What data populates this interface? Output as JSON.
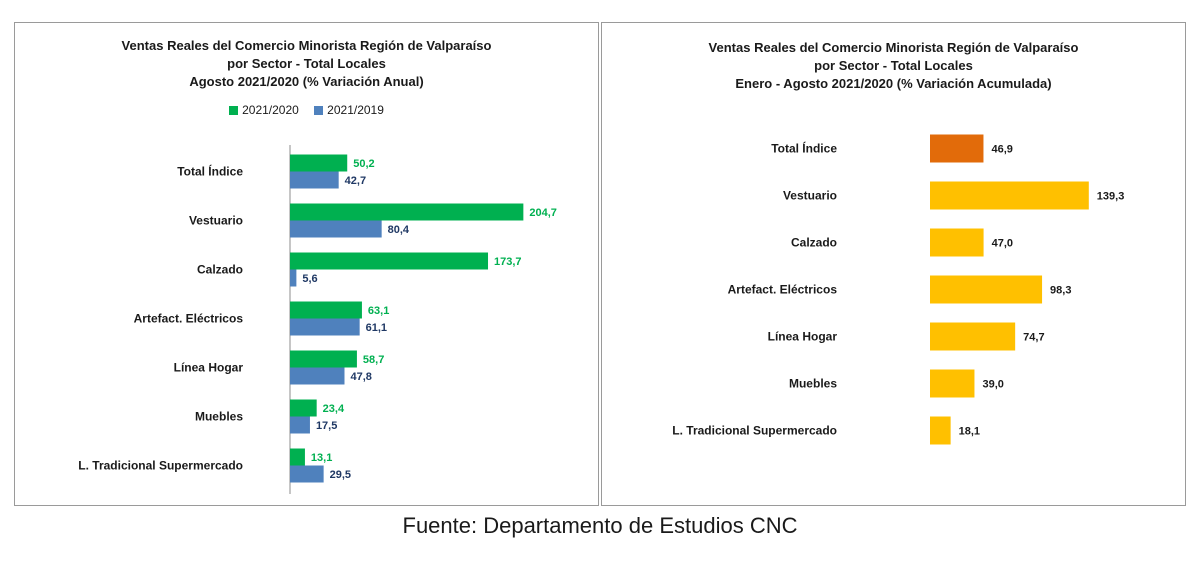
{
  "chart_data": [
    {
      "type": "bar",
      "orientation": "horizontal",
      "title": [
        "Ventas Reales del Comercio Minorista Región de Valparaíso",
        "por Sector - Total Locales",
        "Agosto 2021/2020 (% Variación Anual)"
      ],
      "categories": [
        "Total Índice",
        "Vestuario",
        "Calzado",
        "Artefact. Eléctricos",
        "Línea Hogar",
        "Muebles",
        "L. Tradicional Supermercado"
      ],
      "series": [
        {
          "name": "2021/2020",
          "color": "#00b050",
          "label_color": "#00b050",
          "values": [
            50.2,
            204.7,
            173.7,
            63.1,
            58.7,
            23.4,
            13.1
          ],
          "labels": [
            "50,2",
            "204,7",
            "173,7",
            "63,1",
            "58,7",
            "23,4",
            "13,1"
          ]
        },
        {
          "name": "2021/2019",
          "color": "#4f81bd",
          "label_color": "#1f3864",
          "values": [
            42.7,
            80.4,
            5.6,
            61.1,
            47.8,
            17.5,
            29.5
          ],
          "labels": [
            "42,7",
            "80,4",
            "5,6",
            "61,1",
            "47,8",
            "17,5",
            "29,5"
          ]
        }
      ],
      "legend_position": "top",
      "grid": false
    },
    {
      "type": "bar",
      "orientation": "horizontal",
      "title": [
        "Ventas Reales del Comercio Minorista Región de Valparaíso",
        "por Sector  - Total Locales",
        "Enero - Agosto 2021/2020 (% Variación Acumulada)"
      ],
      "categories": [
        "Total Índice",
        "Vestuario",
        "Calzado",
        "Artefact. Eléctricos",
        "Línea Hogar",
        "Muebles",
        "L. Tradicional Supermercado"
      ],
      "values": [
        46.9,
        139.3,
        47.0,
        98.3,
        74.7,
        39.0,
        18.1
      ],
      "labels": [
        "46,9",
        "139,3",
        "47,0",
        "98,3",
        "74,7",
        "39,0",
        "18,1"
      ],
      "colors": [
        "#e26b0a",
        "#ffc000",
        "#ffc000",
        "#ffc000",
        "#ffc000",
        "#ffc000",
        "#ffc000"
      ],
      "grid": false
    }
  ],
  "source": "Fuente: Departamento de Estudios CNC"
}
